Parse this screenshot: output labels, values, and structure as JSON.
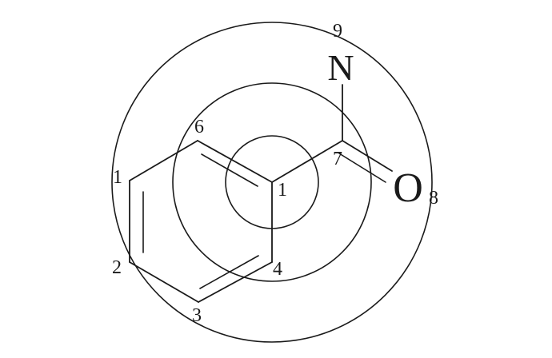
{
  "labels": {
    "n1": "1",
    "n1b": "1",
    "n2": "2",
    "n3": "3",
    "n4": "4",
    "n6": "6",
    "n7": "7",
    "n8": "8",
    "n9": "9",
    "nitrogen": "N",
    "oxygen": "O"
  }
}
